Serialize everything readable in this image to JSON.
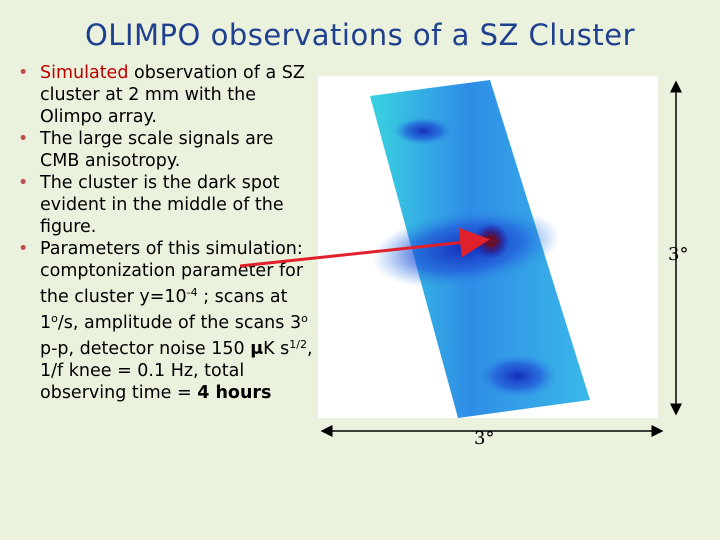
{
  "slide": {
    "title": "OLIMPO observations of a SZ Cluster",
    "bullets": [
      {
        "highlight": "Simulated",
        "rest": " observation of a SZ cluster at 2 mm with the Olimpo array."
      },
      {
        "text": "The large scale signals are CMB anisotropy."
      },
      {
        "text": "The cluster is the dark spot evident in the middle of the figure."
      },
      {
        "part1": "Parameters of this simulation: comptonization parameter for the cluster y=10",
        "exp1": "-4",
        "part2": " ; scans at 1",
        "deg1": "o",
        "part3": "/s, amplitude of the scans 3",
        "deg2": "o",
        "part4": " p-p, detector noise 150 ",
        "mu": "μ",
        "part5": "K s",
        "exp2": "1/2",
        "part6": ",  1/f knee = 0.1 Hz, total observing time = ",
        "bold_end": "4 hours"
      }
    ]
  },
  "figure": {
    "height_label": "3°",
    "width_label": "3°",
    "colors": {
      "background": "#eaf1dd",
      "title": "#1f3f8f",
      "arrow": "#e0202a",
      "map_light": "#39d3df",
      "map_mid": "#2f8ce6",
      "map_dark": "#1226b8",
      "cluster": "#6a0f2a"
    }
  }
}
